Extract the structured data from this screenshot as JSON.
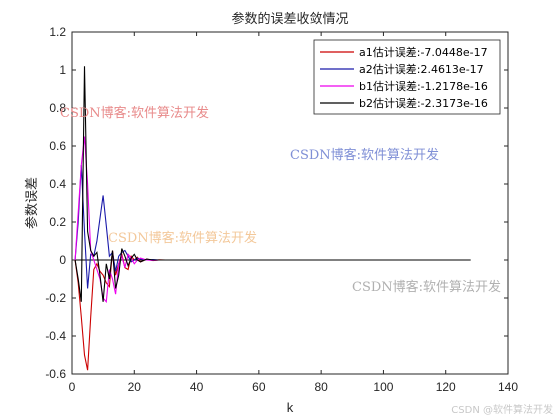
{
  "chart_data": {
    "type": "line",
    "title": "参数的误差收敛情况",
    "xlabel": "k",
    "ylabel": "参数误差",
    "xlim": [
      0,
      140
    ],
    "ylim": [
      -0.6,
      1.2
    ],
    "xticks": [
      "0",
      "20",
      "40",
      "60",
      "80",
      "100",
      "120",
      "140"
    ],
    "yticks": [
      "-0.6",
      "-0.4",
      "-0.2",
      "0",
      "0.2",
      "0.4",
      "0.6",
      "0.8",
      "1",
      "1.2"
    ],
    "grid": false,
    "legend_position": "top-right",
    "series": [
      {
        "name": "a1估计误差:-7.0448e-17",
        "color": "#cc0000",
        "x": [
          1,
          2,
          3,
          4,
          5,
          6,
          7,
          8,
          9,
          10,
          11,
          12,
          13,
          14,
          15,
          16,
          17,
          18,
          19,
          20,
          21,
          22,
          24,
          26,
          28,
          30
        ],
        "y": [
          0,
          -0.12,
          -0.3,
          -0.5,
          -0.58,
          -0.3,
          -0.05,
          -0.02,
          -0.06,
          -0.08,
          -0.12,
          -0.14,
          0.05,
          -0.08,
          -0.02,
          0.03,
          -0.04,
          -0.05,
          0.02,
          0.0,
          0.015,
          -0.01,
          0.005,
          -0.003,
          0.001,
          0
        ]
      },
      {
        "name": "a2估计误差:2.4613e-17",
        "color": "#1a1aaa",
        "x": [
          1,
          2,
          3,
          4,
          5,
          6,
          7,
          8,
          9,
          10,
          11,
          12,
          13,
          14,
          15,
          16,
          17,
          18,
          19,
          20,
          21,
          22,
          24,
          26,
          28,
          30
        ],
        "y": [
          0,
          0.2,
          0.5,
          0.15,
          -0.15,
          0.03,
          0.02,
          0.1,
          0.22,
          0.34,
          0.18,
          0.02,
          0.04,
          -0.06,
          0.02,
          0.04,
          0.05,
          0.02,
          -0.01,
          0.0,
          0.01,
          0.005,
          0.0,
          0.002,
          0.0,
          0
        ]
      },
      {
        "name": "b1估计误差:-1.2178e-16",
        "color": "#ee00ee",
        "x": [
          1,
          2,
          3,
          4,
          5,
          6,
          7,
          8,
          9,
          10,
          11,
          12,
          13,
          14,
          15,
          16,
          17,
          18,
          19,
          20,
          21,
          22,
          24,
          26,
          28,
          30
        ],
        "y": [
          0,
          0.25,
          0.5,
          0.65,
          0.4,
          0.05,
          0.0,
          -0.05,
          -0.1,
          -0.2,
          -0.22,
          -0.05,
          -0.1,
          -0.18,
          -0.02,
          0.02,
          -0.04,
          0.03,
          0.01,
          -0.02,
          0.0,
          0.01,
          0.0,
          -0.002,
          0.0,
          0
        ]
      },
      {
        "name": "b2估计误差:-2.3173e-16",
        "color": "#000000",
        "x": [
          1,
          2,
          3,
          4,
          5,
          6,
          7,
          8,
          9,
          10,
          11,
          12,
          13,
          14,
          15,
          16,
          17,
          18,
          19,
          20,
          21,
          22,
          24,
          26,
          28,
          30,
          40,
          60,
          80,
          100,
          128
        ],
        "y": [
          0,
          -0.1,
          -0.22,
          1.02,
          0.15,
          0.05,
          0.02,
          0.04,
          -0.08,
          -0.22,
          -0.02,
          -0.1,
          0.05,
          -0.15,
          -0.08,
          0.06,
          0.02,
          -0.03,
          0.01,
          0.03,
          0.0,
          -0.01,
          0.005,
          0.0,
          0.0,
          0,
          0,
          0,
          0,
          0,
          0
        ]
      }
    ]
  },
  "watermarks": [
    {
      "text": "CSDN博客:软件算法开发",
      "color": "#e88a8a"
    },
    {
      "text": "CSDN博客:软件算法开发",
      "color": "#7f8fd6"
    },
    {
      "text": "CSDN博客:软件算法开发",
      "color": "#f3c89a"
    },
    {
      "text": "CSDN博客:软件算法开发",
      "color": "#b0b0b0"
    }
  ],
  "footer": "CSDN @软件算法开发"
}
